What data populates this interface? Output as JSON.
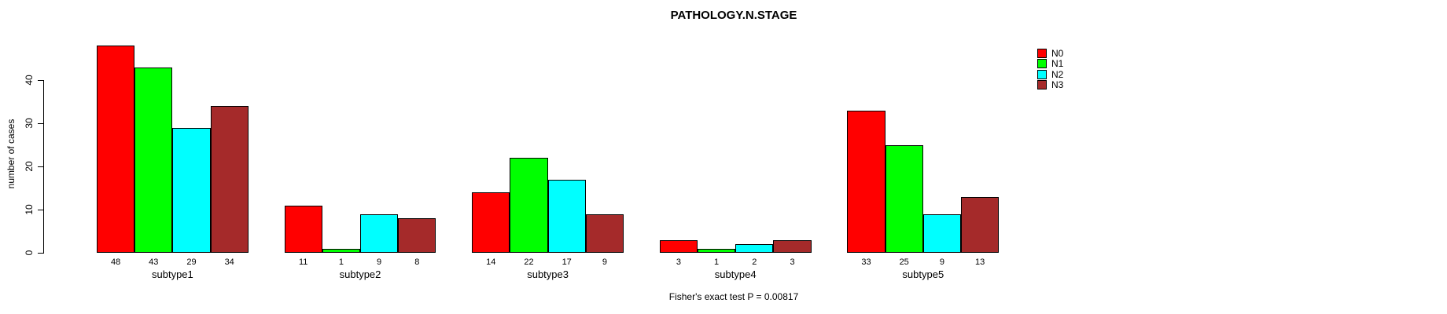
{
  "chart": {
    "title": "PATHOLOGY.N.STAGE",
    "ylabel": "number of cases",
    "footnote": "Fisher's exact test P = 0.00817"
  },
  "chart_data": {
    "type": "bar",
    "title": "PATHOLOGY.N.STAGE",
    "xlabel": "",
    "ylabel": "number of cases",
    "categories": [
      "subtype1",
      "subtype2",
      "subtype3",
      "subtype4",
      "subtype5"
    ],
    "series": [
      {
        "name": "N0",
        "color": "#FF0000",
        "values": [
          48,
          11,
          14,
          3,
          33
        ]
      },
      {
        "name": "N1",
        "color": "#00FF00",
        "values": [
          43,
          1,
          22,
          1,
          25
        ]
      },
      {
        "name": "N2",
        "color": "#00FFFF",
        "values": [
          29,
          9,
          17,
          2,
          9
        ]
      },
      {
        "name": "N3",
        "color": "#A52A2A",
        "values": [
          34,
          8,
          9,
          3,
          13
        ]
      }
    ],
    "y_ticks": [
      0,
      10,
      20,
      30,
      40
    ],
    "ylim": [
      0,
      48
    ],
    "grid": false,
    "bar_value_labels": true,
    "legend_position": "top-right",
    "annotation": "Fisher's exact test P = 0.00817"
  }
}
